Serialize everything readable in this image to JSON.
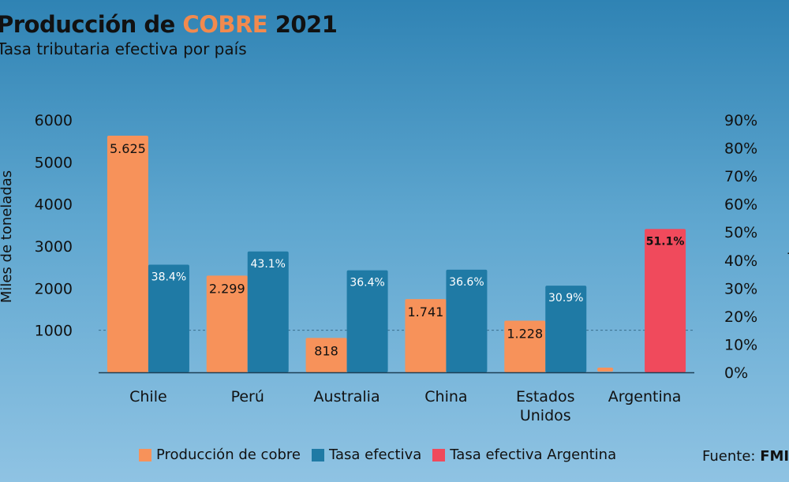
{
  "header": {
    "title_prefix": "Producción de ",
    "title_highlight": "COBRE",
    "title_suffix": " 2021",
    "subtitle": "Tasa tributaria efectiva por país"
  },
  "chart_data": {
    "type": "bar",
    "title": "Producción de COBRE 2021",
    "subtitle": "Tasa tributaria efectiva por país",
    "categories": [
      [
        "Chile"
      ],
      [
        "Perú"
      ],
      [
        "Australia"
      ],
      [
        "China"
      ],
      [
        "Estados",
        "Unidos"
      ],
      [
        "Argentina"
      ]
    ],
    "ylabel_left": "Miles de toneladas",
    "ylabel_right": "Tasa efectiva promedio",
    "ylim_left": [
      0,
      6000
    ],
    "yticks_left": [
      "6000",
      "5000",
      "4000",
      "3000",
      "2000",
      "1000"
    ],
    "yticks_left_values": [
      6000,
      5000,
      4000,
      3000,
      2000,
      1000
    ],
    "ylim_right": [
      0,
      90
    ],
    "yticks_right": [
      "90%",
      "80%",
      "70%",
      "60%",
      "50%",
      "40%",
      "30%",
      "20%",
      "10%",
      "0%"
    ],
    "yticks_right_values": [
      90,
      80,
      70,
      60,
      50,
      40,
      30,
      20,
      10,
      0
    ],
    "reference_line_left": 1000,
    "series": [
      {
        "name": "Producción de cobre",
        "axis": "left",
        "color": "#f7925a",
        "values": [
          5625,
          2299,
          818,
          1741,
          1228,
          150
        ],
        "labels": [
          "5.625",
          "2.299",
          "818",
          "1.741",
          "1.228",
          ""
        ]
      },
      {
        "name": "Tasa efectiva",
        "axis": "right",
        "color": "#1f7aa5",
        "values": [
          38.4,
          43.1,
          36.4,
          36.6,
          30.9,
          null
        ],
        "labels": [
          "38.4%",
          "43.1%",
          "36.4%",
          "36.6%",
          "30.9%",
          ""
        ]
      },
      {
        "name": "Tasa efectiva Argentina",
        "axis": "right",
        "color": "#f04a5c",
        "values": [
          null,
          null,
          null,
          null,
          null,
          51.1
        ],
        "labels": [
          "",
          "",
          "",
          "",
          "",
          "51.1%"
        ]
      }
    ],
    "legend": [
      "Producción de cobre",
      "Tasa efectiva",
      "Tasa efectiva Argentina"
    ],
    "legend_position": "bottom"
  },
  "footer": {
    "source_label": "Fuente: ",
    "source_value": "FMI"
  }
}
